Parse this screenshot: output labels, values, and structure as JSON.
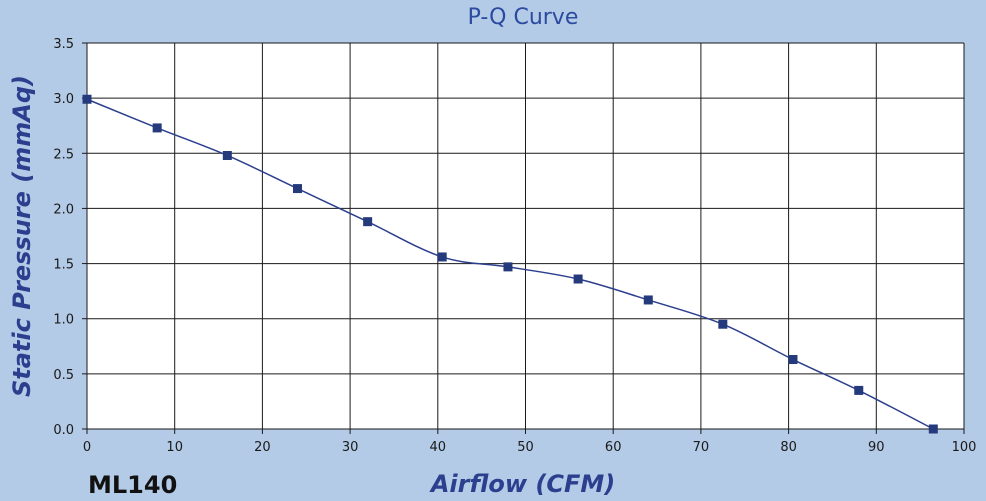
{
  "chart_data": {
    "type": "line",
    "title": "P-Q Curve",
    "xlabel": "Airflow (CFM)",
    "ylabel": "Static Pressure (mmAq)",
    "model_label": "ML140",
    "xlim": [
      0,
      100
    ],
    "ylim": [
      0,
      3.5
    ],
    "x_ticks": [
      0,
      10,
      20,
      30,
      40,
      50,
      60,
      70,
      80,
      90,
      100
    ],
    "y_ticks": [
      0.0,
      0.5,
      1.0,
      1.5,
      2.0,
      2.5,
      3.0,
      3.5
    ],
    "x_tick_labels": [
      "0",
      "10",
      "20",
      "30",
      "40",
      "50",
      "60",
      "70",
      "80",
      "90",
      "100"
    ],
    "y_tick_labels": [
      "0.0",
      "0.5",
      "1.0",
      "1.5",
      "2.0",
      "2.5",
      "3.0",
      "3.5"
    ],
    "grid": true,
    "series": [
      {
        "x": [
          0,
          8,
          16,
          24,
          32,
          40.5,
          48,
          56,
          64,
          72.5,
          80.5,
          88,
          96.5
        ],
        "y": [
          2.99,
          2.73,
          2.48,
          2.18,
          1.88,
          1.56,
          1.47,
          1.36,
          1.17,
          0.95,
          0.63,
          0.35,
          0.0
        ]
      }
    ],
    "colors": {
      "background": "#b3cbe6",
      "plot_background": "#ffffff",
      "grid": "#1a1a1a",
      "line": "#2c3f8e",
      "marker": "#253a7c",
      "title": "#2b4aa0",
      "axis_title": "#2c3f8e"
    }
  }
}
